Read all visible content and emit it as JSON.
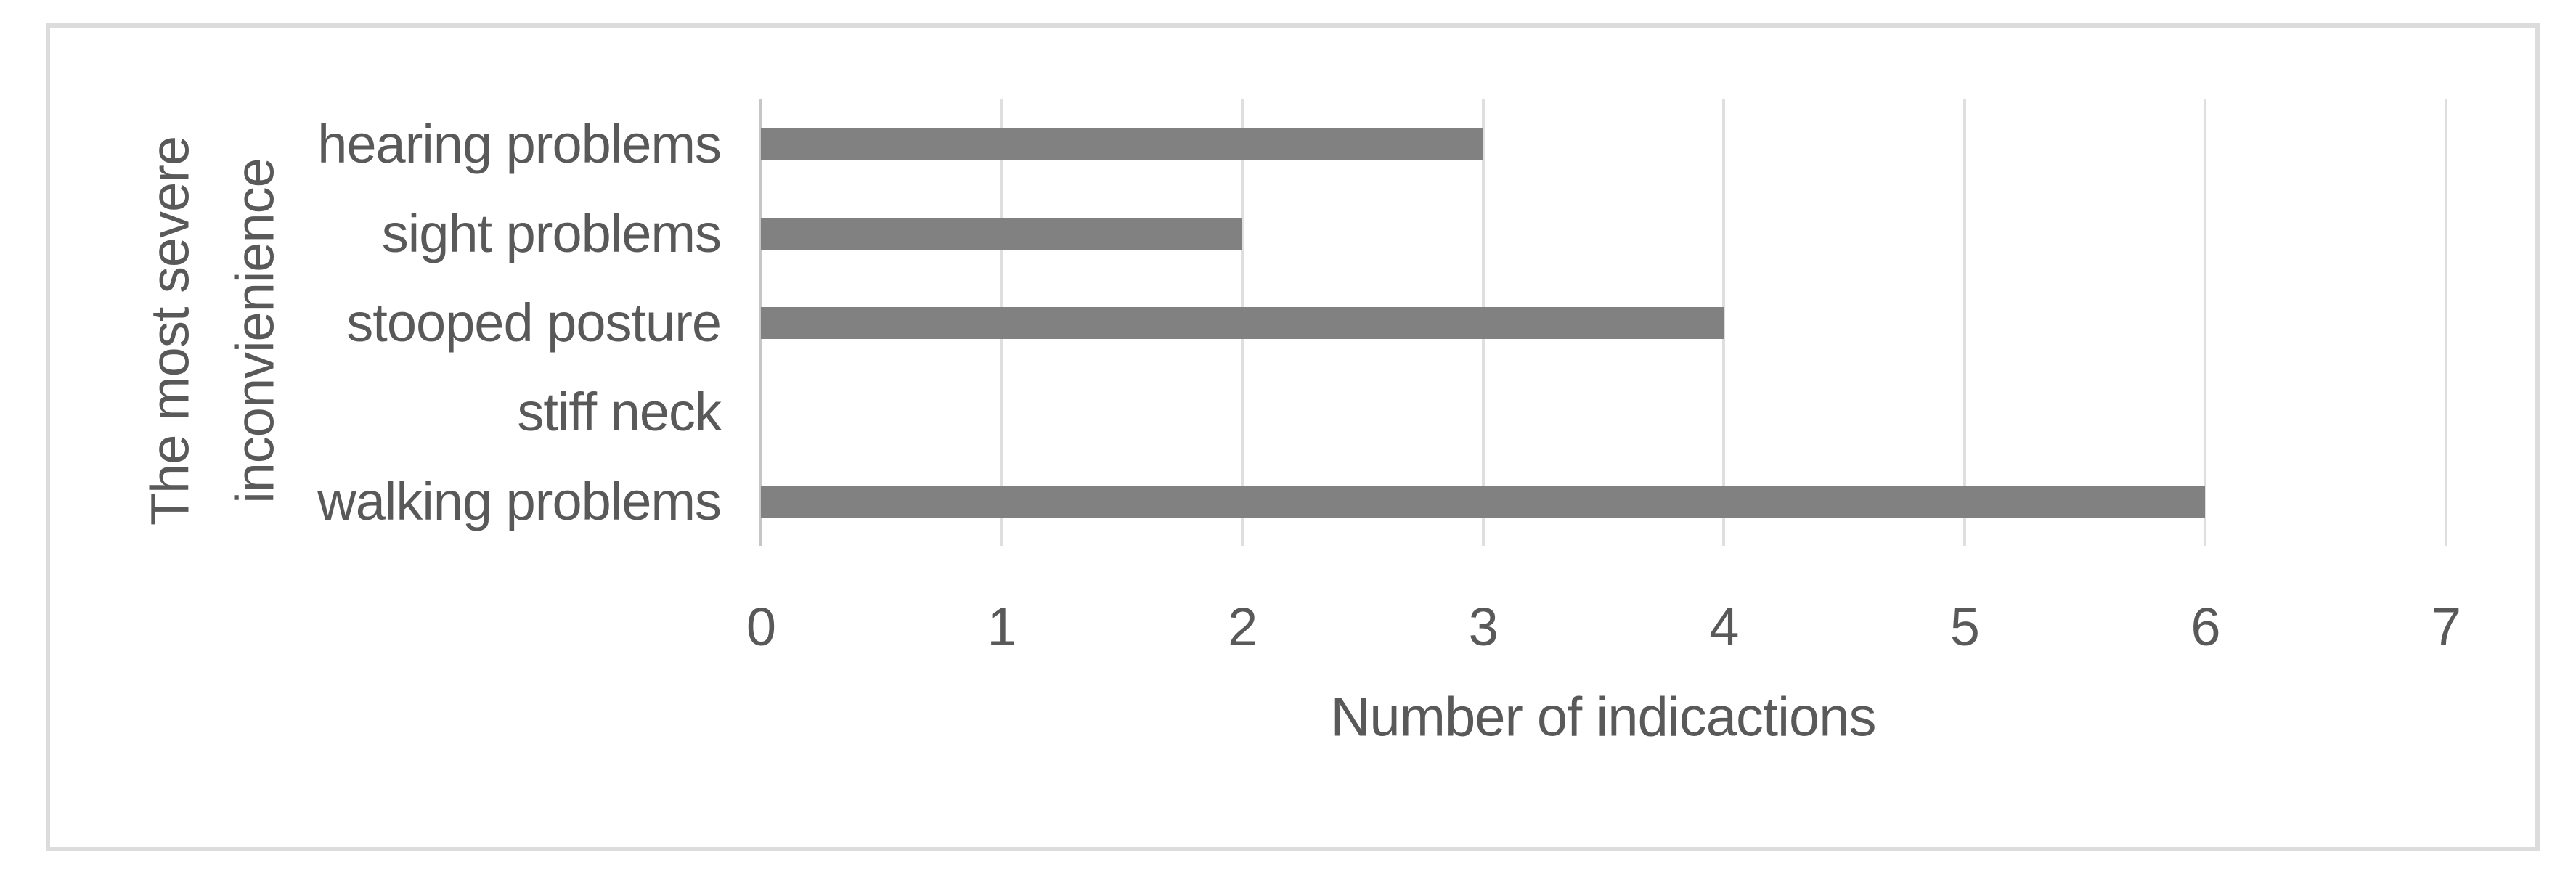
{
  "chart_data": {
    "type": "bar",
    "orientation": "horizontal",
    "title": "",
    "categories": [
      "hearing problems",
      "sight problems",
      "stooped posture",
      "stiff neck",
      "walking problems"
    ],
    "values": [
      3,
      2,
      4,
      0,
      6
    ],
    "xlabel": "Number of indicactions",
    "ylabel": "The most severe inconvienience",
    "ylabel_lines": [
      "The most severe",
      "inconvienience"
    ],
    "xlim": [
      0,
      7
    ],
    "xticks": [
      "0",
      "1",
      "2",
      "3",
      "4",
      "5",
      "6",
      "7"
    ],
    "grid": true,
    "gridline_color": "#dfdfdf",
    "axis_line_color": "#c6c6c6",
    "bar_color": "#818181",
    "text_color": "#595959",
    "frame_border_color": "#dcdcdc",
    "background_color": "#ffffff",
    "legend": null
  }
}
